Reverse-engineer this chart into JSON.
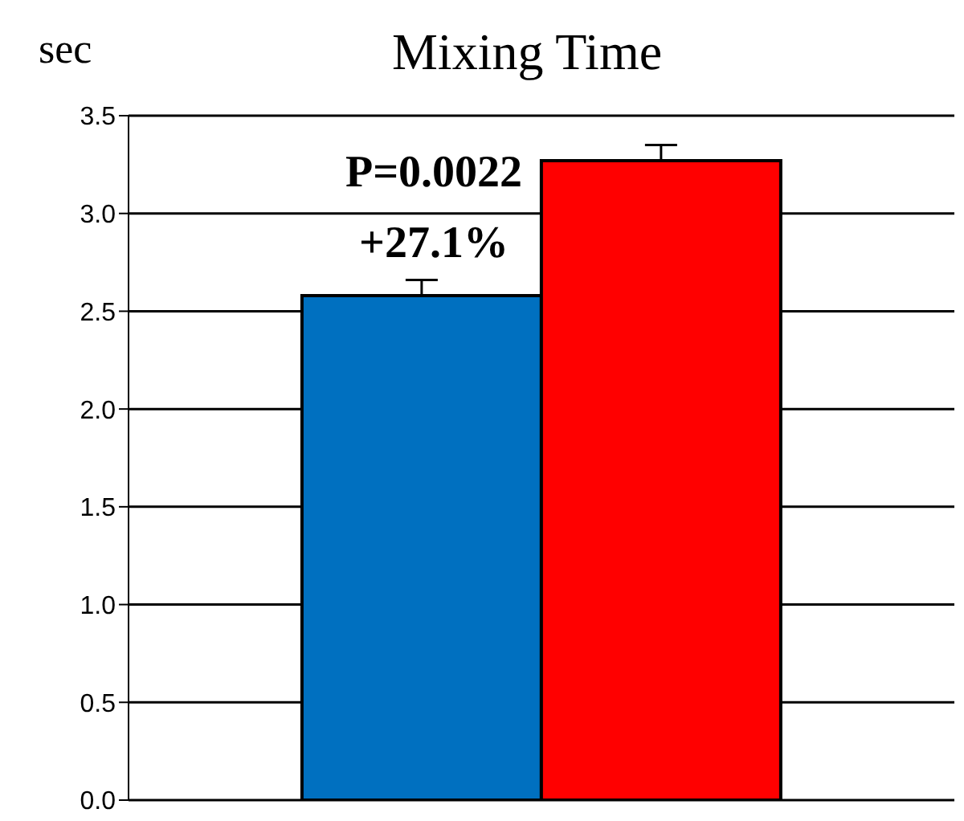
{
  "chart_data": {
    "type": "bar",
    "title": "Mixing Time",
    "ylabel": "sec",
    "categories": [
      null
    ],
    "series": [
      {
        "color": "#0070c0",
        "values": [
          2.58
        ],
        "errors": [
          [
            2.58,
            2.66
          ]
        ]
      },
      {
        "color": "#ff0000",
        "values": [
          3.27
        ],
        "errors": [
          [
            3.27,
            3.35
          ]
        ]
      }
    ],
    "ylim": [
      0,
      3.5
    ],
    "yticks": [
      {
        "value": 0,
        "label": "0.0"
      },
      {
        "value": 0.5,
        "label": "0.5"
      },
      {
        "value": 1,
        "label": "1.0"
      },
      {
        "value": 1.5,
        "label": "1.5"
      },
      {
        "value": 2,
        "label": "2.0"
      },
      {
        "value": 2.5,
        "label": "2.5"
      },
      {
        "value": 3,
        "label": "3.0"
      },
      {
        "value": 3.5,
        "label": "3.5"
      }
    ],
    "grid": "y",
    "legend": false,
    "annotations": [
      "P=0.0022",
      "+27.1%"
    ]
  }
}
